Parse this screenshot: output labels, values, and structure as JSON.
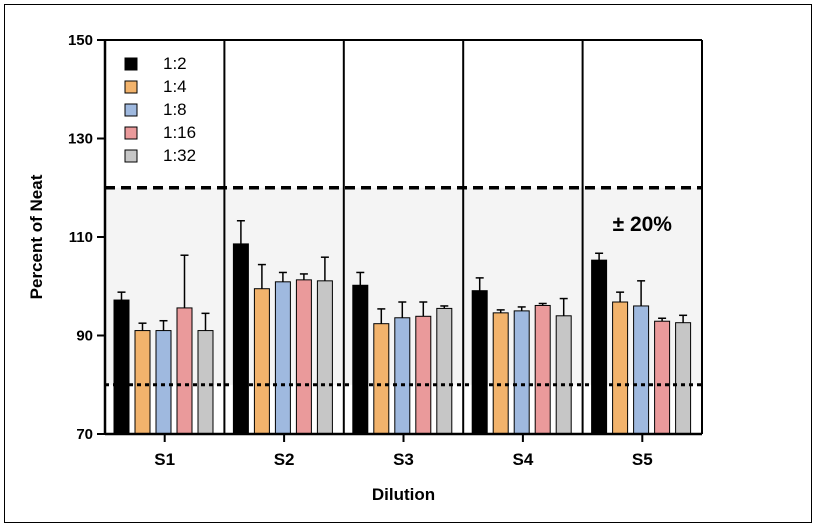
{
  "chart_data": {
    "type": "bar",
    "xlabel": "Dilution",
    "ylabel": "Percent of Neat",
    "ylim": [
      70,
      150
    ],
    "yticks": [
      70,
      90,
      110,
      130,
      150
    ],
    "categories": [
      "S1",
      "S2",
      "S3",
      "S4",
      "S5"
    ],
    "series": [
      {
        "name": "1:2",
        "color": "#000000",
        "values": [
          97.2,
          108.6,
          100.2,
          99.1,
          105.3
        ],
        "errors": [
          1.6,
          4.7,
          2.6,
          2.6,
          1.4
        ]
      },
      {
        "name": "1:4",
        "color": "#f2b36c",
        "values": [
          91.0,
          99.5,
          92.4,
          94.6,
          96.8
        ],
        "errors": [
          1.5,
          4.9,
          3.0,
          0.6,
          2.0
        ]
      },
      {
        "name": "1:8",
        "color": "#9fb9df",
        "values": [
          91.0,
          100.9,
          93.6,
          95.0,
          96.0
        ],
        "errors": [
          2.0,
          1.9,
          3.2,
          0.8,
          5.1
        ]
      },
      {
        "name": "1:16",
        "color": "#ea9a9b",
        "values": [
          95.6,
          101.3,
          93.9,
          96.1,
          92.9
        ],
        "errors": [
          10.7,
          1.2,
          2.9,
          0.4,
          0.6
        ]
      },
      {
        "name": "1:32",
        "color": "#c6c6c6",
        "values": [
          91.0,
          101.1,
          95.5,
          94.0,
          92.6
        ],
        "errors": [
          3.5,
          4.8,
          0.5,
          3.5,
          1.5
        ]
      }
    ],
    "reference_lines": [
      {
        "value": 120,
        "style": "dashed"
      },
      {
        "value": 80,
        "style": "dotted"
      }
    ],
    "shaded_band": [
      80,
      120
    ],
    "annotation": "± 20%",
    "legend_position": "top-left"
  }
}
